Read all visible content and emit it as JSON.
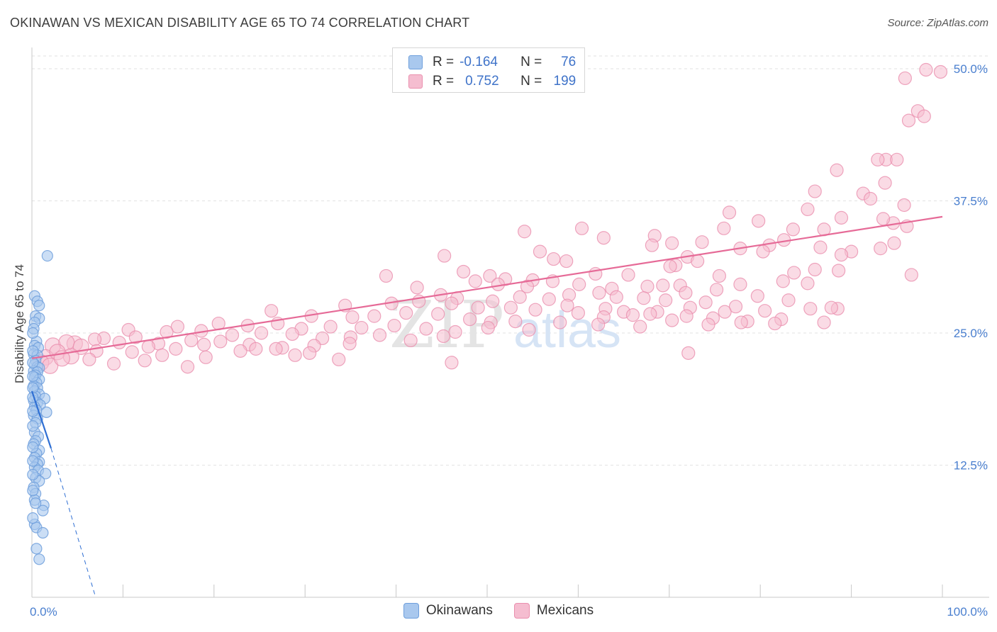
{
  "header": {
    "title": "OKINAWAN VS MEXICAN DISABILITY AGE 65 TO 74 CORRELATION CHART",
    "source": "Source: ZipAtlas.com"
  },
  "legend": {
    "r_label": "R =",
    "n_label": "N =",
    "rows": [
      {
        "r": "-0.164",
        "n": "76",
        "color": "#a9c8ee"
      },
      {
        "r": "0.752",
        "n": "199",
        "color": "#f5bdd0"
      }
    ]
  },
  "watermark": {
    "zip": "ZIP",
    "atlas": "atlas"
  },
  "colors": {
    "okinawan_fill": "#a9c8ee",
    "okinawan_stroke": "#6e9fdc",
    "okinawan_line": "#2f6fd3",
    "mexican_fill": "#f5bdd0",
    "mexican_stroke": "#ea8fae",
    "mexican_line": "#e66a97",
    "tick_text": "#4a7fcf"
  },
  "chart_data": {
    "type": "scatter",
    "title": "OKINAWAN VS MEXICAN DISABILITY AGE 65 TO 74 CORRELATION CHART",
    "xlabel": "",
    "ylabel": "Disability Age 65 to 74",
    "xlim": [
      0,
      100
    ],
    "ylim": [
      0,
      51.5
    ],
    "x_tick_labels": [
      "0.0%",
      "100.0%"
    ],
    "y_ticks": [
      12.5,
      25.0,
      37.5,
      50.0
    ],
    "y_tick_labels": [
      "12.5%",
      "25.0%",
      "37.5%",
      "50.0%"
    ],
    "grid": true,
    "legend_position": "top-center",
    "series": [
      {
        "name": "Okinawans",
        "r": -0.164,
        "n": 76,
        "trend": {
          "x": [
            0,
            2.1
          ],
          "y": [
            19.5,
            14.1
          ],
          "dashed_to": [
            7.0,
            0
          ]
        },
        "points": [
          [
            1.7,
            32.3
          ],
          [
            0.3,
            28.5
          ],
          [
            0.6,
            28.0
          ],
          [
            0.8,
            27.6
          ],
          [
            0.4,
            26.6
          ],
          [
            0.8,
            26.4
          ],
          [
            0.3,
            26.0
          ],
          [
            0.2,
            25.4
          ],
          [
            0.5,
            24.2
          ],
          [
            0.3,
            23.8
          ],
          [
            0.7,
            23.6
          ],
          [
            0.2,
            23.0
          ],
          [
            0.6,
            22.9
          ],
          [
            0.4,
            22.4
          ],
          [
            0.3,
            22.0
          ],
          [
            0.6,
            21.8
          ],
          [
            0.8,
            21.7
          ],
          [
            0.2,
            21.4
          ],
          [
            0.6,
            21.3
          ],
          [
            0.4,
            21.0
          ],
          [
            0.3,
            20.8
          ],
          [
            0.8,
            20.6
          ],
          [
            0.5,
            20.3
          ],
          [
            0.2,
            20.0
          ],
          [
            0.6,
            19.8
          ],
          [
            0.3,
            19.5
          ],
          [
            0.8,
            19.2
          ],
          [
            0.4,
            19.0
          ],
          [
            1.4,
            18.8
          ],
          [
            0.2,
            18.6
          ],
          [
            0.6,
            18.4
          ],
          [
            0.9,
            18.2
          ],
          [
            0.3,
            18.0
          ],
          [
            0.5,
            17.7
          ],
          [
            1.6,
            17.5
          ],
          [
            0.2,
            17.2
          ],
          [
            0.6,
            16.9
          ],
          [
            0.4,
            16.5
          ],
          [
            0.3,
            15.6
          ],
          [
            0.7,
            15.2
          ],
          [
            0.4,
            14.8
          ],
          [
            0.2,
            14.5
          ],
          [
            0.8,
            13.9
          ],
          [
            0.5,
            13.6
          ],
          [
            0.3,
            13.2
          ],
          [
            0.8,
            12.8
          ],
          [
            0.6,
            12.6
          ],
          [
            0.3,
            12.3
          ],
          [
            0.7,
            12.0
          ],
          [
            1.5,
            11.7
          ],
          [
            0.4,
            11.3
          ],
          [
            0.8,
            11.0
          ],
          [
            0.2,
            10.4
          ],
          [
            0.4,
            9.8
          ],
          [
            0.3,
            9.2
          ],
          [
            1.3,
            8.7
          ],
          [
            1.2,
            8.2
          ],
          [
            0.4,
            8.9
          ],
          [
            0.3,
            6.9
          ],
          [
            0.5,
            6.6
          ],
          [
            1.2,
            6.1
          ],
          [
            0.5,
            4.6
          ],
          [
            0.8,
            3.6
          ],
          [
            0.1,
            25.0
          ],
          [
            0.1,
            23.3
          ],
          [
            0.1,
            22.2
          ],
          [
            0.1,
            20.9
          ],
          [
            0.1,
            19.8
          ],
          [
            0.1,
            18.9
          ],
          [
            0.1,
            17.6
          ],
          [
            0.1,
            16.2
          ],
          [
            0.1,
            14.2
          ],
          [
            0.1,
            12.9
          ],
          [
            0.1,
            11.6
          ],
          [
            0.1,
            10.1
          ],
          [
            0.1,
            7.5
          ]
        ]
      },
      {
        "name": "Mexicans",
        "r": 0.752,
        "n": 199,
        "trend": {
          "x": [
            0,
            100
          ],
          "y": [
            22.6,
            36.0
          ]
        },
        "points": [
          [
            98.2,
            49.9
          ],
          [
            99.8,
            49.7
          ],
          [
            95.9,
            49.1
          ],
          [
            97.3,
            46.0
          ],
          [
            96.3,
            45.1
          ],
          [
            98.0,
            45.5
          ],
          [
            93.8,
            41.4
          ],
          [
            95.0,
            41.4
          ],
          [
            92.9,
            41.4
          ],
          [
            88.4,
            40.4
          ],
          [
            93.7,
            39.2
          ],
          [
            91.3,
            38.2
          ],
          [
            86.0,
            38.4
          ],
          [
            92.1,
            37.7
          ],
          [
            95.8,
            37.1
          ],
          [
            85.2,
            36.7
          ],
          [
            76.6,
            36.4
          ],
          [
            88.9,
            35.9
          ],
          [
            79.8,
            35.6
          ],
          [
            94.6,
            35.4
          ],
          [
            93.5,
            35.8
          ],
          [
            87.0,
            34.8
          ],
          [
            83.6,
            34.8
          ],
          [
            96.1,
            35.1
          ],
          [
            60.4,
            34.9
          ],
          [
            68.4,
            34.2
          ],
          [
            76.0,
            34.9
          ],
          [
            82.6,
            33.8
          ],
          [
            86.6,
            33.1
          ],
          [
            73.6,
            33.6
          ],
          [
            81.0,
            33.3
          ],
          [
            77.8,
            33.0
          ],
          [
            80.3,
            32.7
          ],
          [
            93.2,
            33.0
          ],
          [
            90.0,
            32.7
          ],
          [
            94.7,
            33.5
          ],
          [
            70.3,
            33.5
          ],
          [
            54.1,
            34.6
          ],
          [
            62.8,
            34.0
          ],
          [
            68.1,
            33.3
          ],
          [
            72.0,
            32.2
          ],
          [
            88.9,
            32.4
          ],
          [
            55.8,
            32.7
          ],
          [
            45.3,
            32.3
          ],
          [
            57.3,
            32.0
          ],
          [
            58.7,
            31.8
          ],
          [
            70.7,
            31.4
          ],
          [
            73.1,
            31.8
          ],
          [
            86.0,
            31.0
          ],
          [
            88.6,
            30.9
          ],
          [
            61.9,
            30.6
          ],
          [
            65.5,
            30.5
          ],
          [
            70.1,
            31.3
          ],
          [
            75.5,
            30.4
          ],
          [
            83.7,
            30.7
          ],
          [
            96.6,
            30.5
          ],
          [
            47.4,
            30.8
          ],
          [
            50.3,
            30.4
          ],
          [
            52.0,
            30.1
          ],
          [
            55.0,
            30.0
          ],
          [
            57.2,
            29.9
          ],
          [
            60.1,
            29.6
          ],
          [
            63.7,
            29.2
          ],
          [
            67.6,
            29.4
          ],
          [
            69.3,
            29.5
          ],
          [
            71.2,
            29.5
          ],
          [
            75.2,
            29.1
          ],
          [
            77.8,
            29.6
          ],
          [
            82.5,
            29.9
          ],
          [
            85.2,
            29.7
          ],
          [
            38.9,
            30.4
          ],
          [
            42.3,
            29.3
          ],
          [
            48.7,
            29.9
          ],
          [
            51.2,
            29.6
          ],
          [
            54.4,
            29.4
          ],
          [
            59.0,
            28.6
          ],
          [
            62.3,
            28.8
          ],
          [
            64.2,
            28.4
          ],
          [
            67.2,
            28.3
          ],
          [
            69.6,
            28.1
          ],
          [
            71.8,
            28.8
          ],
          [
            74.0,
            27.9
          ],
          [
            77.3,
            27.5
          ],
          [
            79.7,
            28.5
          ],
          [
            83.1,
            28.1
          ],
          [
            88.5,
            27.3
          ],
          [
            44.9,
            28.6
          ],
          [
            46.7,
            28.3
          ],
          [
            50.6,
            28.0
          ],
          [
            53.6,
            28.4
          ],
          [
            56.8,
            28.2
          ],
          [
            58.8,
            27.6
          ],
          [
            63.0,
            27.3
          ],
          [
            65.0,
            27.0
          ],
          [
            68.7,
            27.0
          ],
          [
            72.3,
            27.4
          ],
          [
            76.1,
            27.0
          ],
          [
            80.5,
            27.1
          ],
          [
            85.5,
            27.3
          ],
          [
            87.8,
            27.4
          ],
          [
            34.4,
            27.6
          ],
          [
            39.5,
            27.8
          ],
          [
            42.5,
            28.0
          ],
          [
            46.1,
            27.8
          ],
          [
            49.0,
            27.4
          ],
          [
            52.6,
            27.4
          ],
          [
            55.3,
            27.2
          ],
          [
            60.0,
            26.9
          ],
          [
            62.8,
            26.5
          ],
          [
            66.0,
            26.7
          ],
          [
            67.9,
            26.8
          ],
          [
            71.9,
            26.6
          ],
          [
            74.8,
            26.4
          ],
          [
            78.6,
            26.1
          ],
          [
            82.3,
            26.3
          ],
          [
            87.0,
            26.0
          ],
          [
            26.3,
            27.1
          ],
          [
            30.7,
            26.6
          ],
          [
            35.2,
            26.5
          ],
          [
            37.6,
            26.6
          ],
          [
            41.1,
            26.9
          ],
          [
            44.6,
            26.8
          ],
          [
            48.1,
            26.3
          ],
          [
            50.4,
            26.0
          ],
          [
            53.1,
            26.1
          ],
          [
            58.0,
            26.0
          ],
          [
            62.2,
            25.8
          ],
          [
            66.8,
            25.6
          ],
          [
            70.3,
            26.2
          ],
          [
            74.3,
            25.8
          ],
          [
            77.9,
            26.0
          ],
          [
            81.6,
            25.9
          ],
          [
            16.0,
            25.6
          ],
          [
            20.5,
            25.9
          ],
          [
            23.7,
            25.7
          ],
          [
            27.0,
            25.9
          ],
          [
            29.6,
            25.4
          ],
          [
            32.8,
            25.6
          ],
          [
            36.2,
            25.5
          ],
          [
            39.8,
            25.7
          ],
          [
            43.3,
            25.4
          ],
          [
            46.5,
            25.1
          ],
          [
            50.1,
            25.5
          ],
          [
            54.6,
            25.3
          ],
          [
            10.6,
            25.3
          ],
          [
            14.8,
            25.1
          ],
          [
            18.6,
            25.2
          ],
          [
            22.0,
            24.8
          ],
          [
            25.2,
            25.0
          ],
          [
            28.6,
            24.9
          ],
          [
            31.9,
            24.5
          ],
          [
            35.0,
            24.6
          ],
          [
            38.2,
            24.8
          ],
          [
            41.6,
            24.3
          ],
          [
            45.2,
            24.7
          ],
          [
            7.9,
            24.5
          ],
          [
            11.4,
            24.6
          ],
          [
            13.9,
            24.0
          ],
          [
            17.5,
            24.3
          ],
          [
            20.7,
            24.2
          ],
          [
            23.9,
            23.9
          ],
          [
            27.5,
            23.6
          ],
          [
            31.0,
            23.8
          ],
          [
            34.9,
            24.0
          ],
          [
            4.7,
            24.0
          ],
          [
            6.9,
            24.4
          ],
          [
            9.6,
            24.1
          ],
          [
            12.8,
            23.7
          ],
          [
            15.8,
            23.5
          ],
          [
            18.9,
            23.9
          ],
          [
            22.9,
            23.3
          ],
          [
            26.8,
            23.5
          ],
          [
            2.3,
            23.8
          ],
          [
            3.8,
            24.1
          ],
          [
            5.4,
            23.7
          ],
          [
            7.1,
            23.3
          ],
          [
            11.0,
            23.2
          ],
          [
            14.3,
            22.9
          ],
          [
            19.1,
            22.7
          ],
          [
            28.9,
            22.9
          ],
          [
            33.7,
            22.5
          ],
          [
            1.5,
            22.7
          ],
          [
            2.8,
            23.2
          ],
          [
            4.3,
            22.8
          ],
          [
            6.3,
            22.5
          ],
          [
            9.0,
            22.1
          ],
          [
            12.4,
            22.4
          ],
          [
            17.1,
            21.8
          ],
          [
            1.0,
            22.2
          ],
          [
            2.0,
            21.9
          ],
          [
            3.3,
            22.6
          ],
          [
            24.6,
            23.5
          ],
          [
            30.5,
            23.1
          ],
          [
            46.1,
            22.2
          ],
          [
            72.1,
            23.1
          ]
        ]
      }
    ]
  },
  "axis": {
    "ylabel": "Disability Age 65 to 74",
    "x_left": "0.0%",
    "x_right": "100.0%",
    "y_labels": [
      "12.5%",
      "25.0%",
      "37.5%",
      "50.0%"
    ]
  },
  "bottom_legend": [
    {
      "label": "Okinawans",
      "color": "#a9c8ee"
    },
    {
      "label": "Mexicans",
      "color": "#f5bdd0"
    }
  ]
}
